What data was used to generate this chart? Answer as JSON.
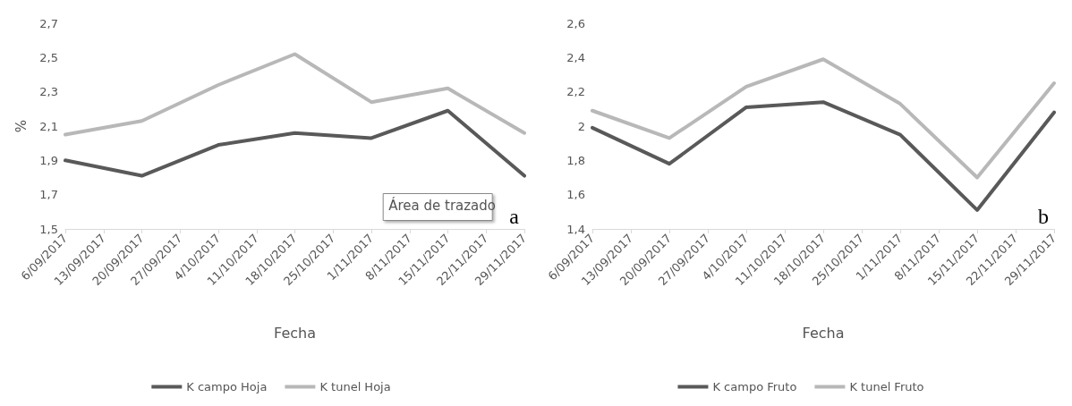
{
  "chart_data": [
    {
      "type": "line",
      "xlabel": "Fecha",
      "ylabel": "%",
      "categories": [
        "6/09/2017",
        "13/09/2017",
        "20/09/2017",
        "27/09/2017",
        "4/10/2017",
        "11/10/2017",
        "18/10/2017",
        "25/10/2017",
        "1/11/2017",
        "8/11/2017",
        "15/11/2017",
        "22/11/2017",
        "29/11/2017"
      ],
      "series": [
        {
          "name": "K campo Hoja",
          "color": "#595959",
          "x": [
            "6/09/2017",
            "20/09/2017",
            "4/10/2017",
            "18/10/2017",
            "1/11/2017",
            "15/11/2017",
            "29/11/2017"
          ],
          "values": [
            1.9,
            1.81,
            1.99,
            2.06,
            2.03,
            2.19,
            1.81
          ]
        },
        {
          "name": "K tunel Hoja",
          "color": "#b8b8b8",
          "x": [
            "6/09/2017",
            "20/09/2017",
            "4/10/2017",
            "18/10/2017",
            "1/11/2017",
            "15/11/2017",
            "29/11/2017"
          ],
          "values": [
            2.05,
            2.13,
            2.34,
            2.52,
            2.24,
            2.32,
            2.06
          ]
        }
      ],
      "ylim": [
        1.5,
        2.7
      ],
      "yticks": [
        {
          "value": 1.5,
          "label": "1,5"
        },
        {
          "value": 1.7,
          "label": "1,7"
        },
        {
          "value": 1.9,
          "label": "1,9"
        },
        {
          "value": 2.1,
          "label": "2,1"
        },
        {
          "value": 2.3,
          "label": "2,3"
        },
        {
          "value": 2.5,
          "label": "2,5"
        },
        {
          "value": 2.7,
          "label": "2,7"
        }
      ],
      "grid": false,
      "legend": "bottom",
      "marker": "none",
      "line_style": "solid",
      "annotations": [
        "a",
        "Área de trazado"
      ]
    },
    {
      "type": "line",
      "xlabel": "Fecha",
      "categories": [
        "6/09/2017",
        "13/09/2017",
        "20/09/2017",
        "27/09/2017",
        "4/10/2017",
        "11/10/2017",
        "18/10/2017",
        "25/10/2017",
        "1/11/2017",
        "8/11/2017",
        "15/11/2017",
        "22/11/2017",
        "29/11/2017"
      ],
      "series": [
        {
          "name": "K campo Fruto",
          "color": "#595959",
          "x": [
            "6/09/2017",
            "20/09/2017",
            "4/10/2017",
            "18/10/2017",
            "1/11/2017",
            "15/11/2017",
            "29/11/2017"
          ],
          "values": [
            1.99,
            1.78,
            2.11,
            2.14,
            1.95,
            1.51,
            2.08
          ]
        },
        {
          "name": "K tunel Fruto",
          "color": "#b8b8b8",
          "x": [
            "6/09/2017",
            "20/09/2017",
            "4/10/2017",
            "18/10/2017",
            "1/11/2017",
            "15/11/2017",
            "29/11/2017"
          ],
          "values": [
            2.09,
            1.93,
            2.23,
            2.39,
            2.13,
            1.7,
            2.25
          ]
        }
      ],
      "ylim": [
        1.4,
        2.6
      ],
      "yticks": [
        {
          "value": 1.4,
          "label": "1,4"
        },
        {
          "value": 1.6,
          "label": "1,6"
        },
        {
          "value": 1.8,
          "label": "1,8"
        },
        {
          "value": 2,
          "label": "2"
        },
        {
          "value": 2.2,
          "label": "2,2"
        },
        {
          "value": 2.4,
          "label": "2,4"
        },
        {
          "value": 2.6,
          "label": "2,6"
        }
      ],
      "grid": false,
      "legend": "bottom",
      "marker": "none",
      "line_style": "solid",
      "annotations": [
        "b"
      ]
    }
  ]
}
